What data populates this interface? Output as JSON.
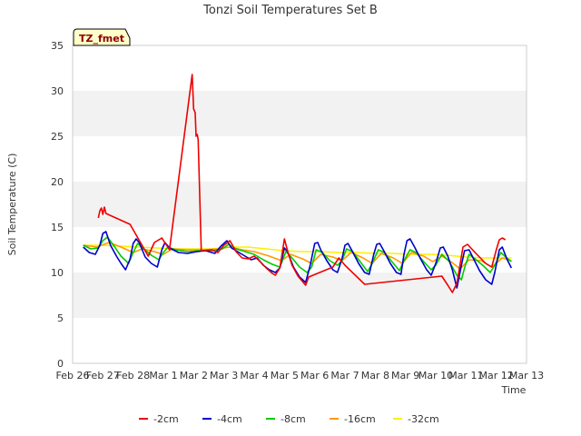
{
  "chart_data": {
    "type": "line",
    "title": "Tonzi Soil Temperatures Set B",
    "xlabel": "Time",
    "ylabel": "Soil Temperature (C)",
    "tag": "TZ_fmet",
    "xlim": [
      0,
      15
    ],
    "ylim": [
      0,
      35
    ],
    "x_ticks": [
      {
        "v": 0,
        "label": "Feb 26"
      },
      {
        "v": 1,
        "label": "Feb 27"
      },
      {
        "v": 2,
        "label": "Feb 28"
      },
      {
        "v": 3,
        "label": "Mar 1"
      },
      {
        "v": 4,
        "label": "Mar 2"
      },
      {
        "v": 5,
        "label": "Mar 3"
      },
      {
        "v": 6,
        "label": "Mar 4"
      },
      {
        "v": 7,
        "label": "Mar 5"
      },
      {
        "v": 8,
        "label": "Mar 6"
      },
      {
        "v": 9,
        "label": "Mar 7"
      },
      {
        "v": 10,
        "label": "Mar 8"
      },
      {
        "v": 11,
        "label": "Mar 9"
      },
      {
        "v": 12,
        "label": "Mar 10"
      },
      {
        "v": 13,
        "label": "Mar 11"
      },
      {
        "v": 14,
        "label": "Mar 12"
      },
      {
        "v": 15,
        "label": "Mar 13"
      }
    ],
    "y_ticks": [
      0,
      5,
      10,
      15,
      20,
      25,
      30,
      35
    ],
    "grid": "horizontal bands",
    "legend_position": "bottom",
    "series": [
      {
        "name": "-2cm",
        "color": "#ee0000",
        "points": [
          [
            0.85,
            16.0
          ],
          [
            0.9,
            16.8
          ],
          [
            0.95,
            17.1
          ],
          [
            1.0,
            16.4
          ],
          [
            1.05,
            17.2
          ],
          [
            1.1,
            16.5
          ],
          [
            1.9,
            15.3
          ],
          [
            2.5,
            11.8
          ],
          [
            2.7,
            13.3
          ],
          [
            2.95,
            13.8
          ],
          [
            3.2,
            12.5
          ],
          [
            3.95,
            31.8
          ],
          [
            4.0,
            28.0
          ],
          [
            4.05,
            27.6
          ],
          [
            4.08,
            25.0
          ],
          [
            4.12,
            25.2
          ],
          [
            4.15,
            24.6
          ],
          [
            4.25,
            12.4
          ],
          [
            4.6,
            12.5
          ],
          [
            4.8,
            12.2
          ],
          [
            5.0,
            13.0
          ],
          [
            5.2,
            13.5
          ],
          [
            5.4,
            12.3
          ],
          [
            5.6,
            11.6
          ],
          [
            5.8,
            11.5
          ],
          [
            6.0,
            11.8
          ],
          [
            6.2,
            11.2
          ],
          [
            6.4,
            10.5
          ],
          [
            6.6,
            9.9
          ],
          [
            6.7,
            9.7
          ],
          [
            6.85,
            10.5
          ],
          [
            7.0,
            13.7
          ],
          [
            7.1,
            12.4
          ],
          [
            7.25,
            10.8
          ],
          [
            7.45,
            9.6
          ],
          [
            7.6,
            9.0
          ],
          [
            7.7,
            8.6
          ],
          [
            7.8,
            9.5
          ],
          [
            8.6,
            10.6
          ],
          [
            8.8,
            11.6
          ],
          [
            9.0,
            10.8
          ],
          [
            9.65,
            8.7
          ],
          [
            12.2,
            9.6
          ],
          [
            12.4,
            8.6
          ],
          [
            12.55,
            7.8
          ],
          [
            12.7,
            8.8
          ],
          [
            12.9,
            12.8
          ],
          [
            13.05,
            13.1
          ],
          [
            13.3,
            12.2
          ],
          [
            13.65,
            11.0
          ],
          [
            13.85,
            10.6
          ],
          [
            14.0,
            12.5
          ],
          [
            14.1,
            13.6
          ],
          [
            14.2,
            13.8
          ],
          [
            14.3,
            13.6
          ]
        ]
      },
      {
        "name": "-4cm",
        "color": "#0000cc",
        "points": [
          [
            0.35,
            12.8
          ],
          [
            0.55,
            12.2
          ],
          [
            0.75,
            12.0
          ],
          [
            0.9,
            13.0
          ],
          [
            1.0,
            14.3
          ],
          [
            1.1,
            14.5
          ],
          [
            1.25,
            13.0
          ],
          [
            1.45,
            11.8
          ],
          [
            1.6,
            11.0
          ],
          [
            1.75,
            10.3
          ],
          [
            1.9,
            11.5
          ],
          [
            2.0,
            13.2
          ],
          [
            2.1,
            13.7
          ],
          [
            2.2,
            13.3
          ],
          [
            2.4,
            11.7
          ],
          [
            2.6,
            11.0
          ],
          [
            2.8,
            10.6
          ],
          [
            2.95,
            12.5
          ],
          [
            3.05,
            13.3
          ],
          [
            3.2,
            12.7
          ],
          [
            3.5,
            12.2
          ],
          [
            3.8,
            12.1
          ],
          [
            4.1,
            12.3
          ],
          [
            4.4,
            12.4
          ],
          [
            4.7,
            12.1
          ],
          [
            4.9,
            12.9
          ],
          [
            5.0,
            13.2
          ],
          [
            5.1,
            13.5
          ],
          [
            5.25,
            12.7
          ],
          [
            5.5,
            12.2
          ],
          [
            5.7,
            11.8
          ],
          [
            5.9,
            11.4
          ],
          [
            6.1,
            11.6
          ],
          [
            6.3,
            10.8
          ],
          [
            6.5,
            10.3
          ],
          [
            6.7,
            10.0
          ],
          [
            6.85,
            10.5
          ],
          [
            7.0,
            12.7
          ],
          [
            7.1,
            12.3
          ],
          [
            7.3,
            10.6
          ],
          [
            7.5,
            9.5
          ],
          [
            7.7,
            8.9
          ],
          [
            7.85,
            10.8
          ],
          [
            8.0,
            13.2
          ],
          [
            8.1,
            13.3
          ],
          [
            8.2,
            12.5
          ],
          [
            8.4,
            11.3
          ],
          [
            8.6,
            10.3
          ],
          [
            8.75,
            10.0
          ],
          [
            8.9,
            11.5
          ],
          [
            9.0,
            13.0
          ],
          [
            9.1,
            13.2
          ],
          [
            9.25,
            12.3
          ],
          [
            9.45,
            11.0
          ],
          [
            9.65,
            10.0
          ],
          [
            9.8,
            9.8
          ],
          [
            9.95,
            12.0
          ],
          [
            10.05,
            13.1
          ],
          [
            10.15,
            13.2
          ],
          [
            10.3,
            12.3
          ],
          [
            10.5,
            11.0
          ],
          [
            10.7,
            10.0
          ],
          [
            10.85,
            9.8
          ],
          [
            10.95,
            12.0
          ],
          [
            11.05,
            13.5
          ],
          [
            11.15,
            13.7
          ],
          [
            11.3,
            12.8
          ],
          [
            11.5,
            11.5
          ],
          [
            11.7,
            10.3
          ],
          [
            11.85,
            9.7
          ],
          [
            12.0,
            11.0
          ],
          [
            12.15,
            12.7
          ],
          [
            12.25,
            12.8
          ],
          [
            12.4,
            11.8
          ],
          [
            12.55,
            10.3
          ],
          [
            12.7,
            8.3
          ],
          [
            12.85,
            10.8
          ],
          [
            12.95,
            12.4
          ],
          [
            13.1,
            12.5
          ],
          [
            13.25,
            11.5
          ],
          [
            13.45,
            10.2
          ],
          [
            13.65,
            9.2
          ],
          [
            13.85,
            8.7
          ],
          [
            13.95,
            10.0
          ],
          [
            14.1,
            12.5
          ],
          [
            14.2,
            12.8
          ],
          [
            14.35,
            11.5
          ],
          [
            14.5,
            10.5
          ]
        ]
      },
      {
        "name": "-8cm",
        "color": "#00cc00",
        "points": [
          [
            0.35,
            13.0
          ],
          [
            0.6,
            12.6
          ],
          [
            0.85,
            12.7
          ],
          [
            1.0,
            13.5
          ],
          [
            1.15,
            13.9
          ],
          [
            1.35,
            13.0
          ],
          [
            1.6,
            11.8
          ],
          [
            1.85,
            11.0
          ],
          [
            2.0,
            12.2
          ],
          [
            2.15,
            13.2
          ],
          [
            2.35,
            12.6
          ],
          [
            2.6,
            11.9
          ],
          [
            2.85,
            11.4
          ],
          [
            3.0,
            12.2
          ],
          [
            3.15,
            12.8
          ],
          [
            3.4,
            12.5
          ],
          [
            3.8,
            12.3
          ],
          [
            4.2,
            12.4
          ],
          [
            4.6,
            12.4
          ],
          [
            4.95,
            12.6
          ],
          [
            5.15,
            13.1
          ],
          [
            5.4,
            12.6
          ],
          [
            5.7,
            12.3
          ],
          [
            6.0,
            12.0
          ],
          [
            6.3,
            11.4
          ],
          [
            6.6,
            10.9
          ],
          [
            6.85,
            10.6
          ],
          [
            7.05,
            12.3
          ],
          [
            7.25,
            11.6
          ],
          [
            7.5,
            10.6
          ],
          [
            7.75,
            10.0
          ],
          [
            7.9,
            10.6
          ],
          [
            8.05,
            12.5
          ],
          [
            8.25,
            12.2
          ],
          [
            8.5,
            11.3
          ],
          [
            8.75,
            10.8
          ],
          [
            8.9,
            11.3
          ],
          [
            9.05,
            12.6
          ],
          [
            9.25,
            12.3
          ],
          [
            9.5,
            11.2
          ],
          [
            9.75,
            10.1
          ],
          [
            9.9,
            11.0
          ],
          [
            10.1,
            12.5
          ],
          [
            10.3,
            12.2
          ],
          [
            10.55,
            11.2
          ],
          [
            10.8,
            10.2
          ],
          [
            10.95,
            11.3
          ],
          [
            11.15,
            12.5
          ],
          [
            11.35,
            12.2
          ],
          [
            11.6,
            11.2
          ],
          [
            11.85,
            10.3
          ],
          [
            12.0,
            10.8
          ],
          [
            12.2,
            12.0
          ],
          [
            12.45,
            11.2
          ],
          [
            12.7,
            9.7
          ],
          [
            12.85,
            9.2
          ],
          [
            12.95,
            10.5
          ],
          [
            13.1,
            12.0
          ],
          [
            13.3,
            11.5
          ],
          [
            13.55,
            10.8
          ],
          [
            13.8,
            10.0
          ],
          [
            13.95,
            10.8
          ],
          [
            14.15,
            12.2
          ],
          [
            14.35,
            11.6
          ],
          [
            14.5,
            11.2
          ]
        ]
      },
      {
        "name": "-16cm",
        "color": "#ff9900",
        "points": [
          [
            0.35,
            13.0
          ],
          [
            0.8,
            12.8
          ],
          [
            1.2,
            13.3
          ],
          [
            1.6,
            12.8
          ],
          [
            2.0,
            12.2
          ],
          [
            2.3,
            12.6
          ],
          [
            2.7,
            12.3
          ],
          [
            3.0,
            12.0
          ],
          [
            3.3,
            12.6
          ],
          [
            3.8,
            12.5
          ],
          [
            4.3,
            12.5
          ],
          [
            4.8,
            12.6
          ],
          [
            5.2,
            12.8
          ],
          [
            5.6,
            12.5
          ],
          [
            6.0,
            12.3
          ],
          [
            6.5,
            11.8
          ],
          [
            6.9,
            11.3
          ],
          [
            7.2,
            12.0
          ],
          [
            7.6,
            11.5
          ],
          [
            7.9,
            11.0
          ],
          [
            8.2,
            12.0
          ],
          [
            8.6,
            11.7
          ],
          [
            8.9,
            11.3
          ],
          [
            9.2,
            12.2
          ],
          [
            9.6,
            11.6
          ],
          [
            9.9,
            11.0
          ],
          [
            10.2,
            12.1
          ],
          [
            10.6,
            11.6
          ],
          [
            10.9,
            11.0
          ],
          [
            11.2,
            12.2
          ],
          [
            11.6,
            11.8
          ],
          [
            11.9,
            11.2
          ],
          [
            12.2,
            11.8
          ],
          [
            12.5,
            11.2
          ],
          [
            12.8,
            10.4
          ],
          [
            13.1,
            11.4
          ],
          [
            13.5,
            11.3
          ],
          [
            13.85,
            10.6
          ],
          [
            14.2,
            11.6
          ],
          [
            14.5,
            11.3
          ]
        ]
      },
      {
        "name": "-32cm",
        "color": "#ffee00",
        "points": [
          [
            0.35,
            13.0
          ],
          [
            1.0,
            13.0
          ],
          [
            1.6,
            12.9
          ],
          [
            2.2,
            12.8
          ],
          [
            2.8,
            12.7
          ],
          [
            3.4,
            12.6
          ],
          [
            4.0,
            12.6
          ],
          [
            4.6,
            12.6
          ],
          [
            5.2,
            12.8
          ],
          [
            5.8,
            12.8
          ],
          [
            6.4,
            12.6
          ],
          [
            7.0,
            12.4
          ],
          [
            7.6,
            12.3
          ],
          [
            8.2,
            12.3
          ],
          [
            8.8,
            12.2
          ],
          [
            9.4,
            12.2
          ],
          [
            10.0,
            12.1
          ],
          [
            10.6,
            12.1
          ],
          [
            11.2,
            12.0
          ],
          [
            11.8,
            12.0
          ],
          [
            12.4,
            11.9
          ],
          [
            13.0,
            11.7
          ],
          [
            13.6,
            11.6
          ],
          [
            14.2,
            11.6
          ],
          [
            14.5,
            11.6
          ]
        ]
      }
    ]
  }
}
